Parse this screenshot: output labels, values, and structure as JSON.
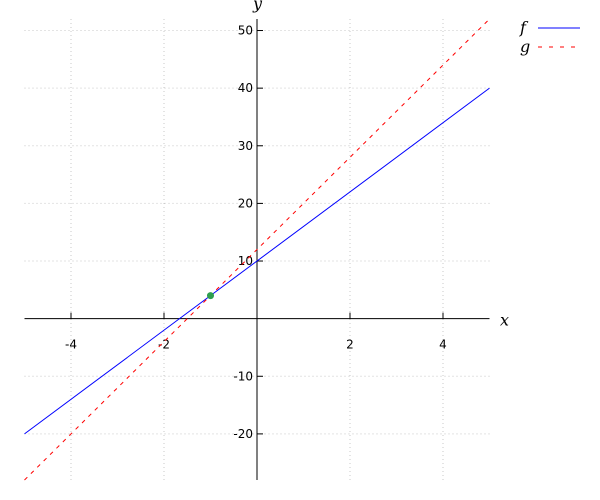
{
  "chart_data": {
    "type": "line",
    "title": "",
    "xlabel": "x",
    "ylabel": "y",
    "xlim": [
      -5,
      5
    ],
    "ylim": [
      -28,
      52
    ],
    "grid": true,
    "legend_placement": "top-right",
    "x_ticks": [
      -4,
      -2,
      2,
      4
    ],
    "y_ticks": [
      -20,
      -10,
      10,
      20,
      30,
      40,
      50
    ],
    "x_tick_labels": [
      "-4",
      "-2",
      "2",
      "4"
    ],
    "y_tick_labels": [
      "-20",
      "-10",
      "10",
      "20",
      "30",
      "40",
      "50"
    ],
    "series": [
      {
        "name": "f",
        "x": [
          -5,
          5
        ],
        "y": [
          -20,
          40
        ],
        "color": "#0000ff",
        "style": "solid"
      },
      {
        "name": "g",
        "x": [
          -5,
          5
        ],
        "y": [
          -28,
          52
        ],
        "color": "#ff0000",
        "style": "dashed"
      }
    ],
    "points": [
      {
        "x": -1,
        "y": 4,
        "color": "#2e9e4f"
      }
    ]
  }
}
